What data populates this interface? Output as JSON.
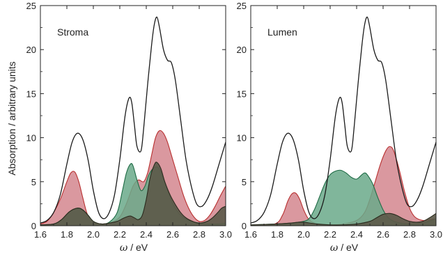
{
  "figure": {
    "ylabel": "Absorption / arbitrary units",
    "xlabel_symbol": "ω",
    "xlabel_unit": " / eV"
  },
  "chart_data": [
    {
      "type": "area",
      "title": "Stroma",
      "xlim": [
        1.6,
        3.0
      ],
      "ylim": [
        0,
        25
      ],
      "x_ticks": [
        "1.6",
        "1.8",
        "2.0",
        "2.2",
        "2.4",
        "2.6",
        "2.8",
        "3.0"
      ],
      "y_ticks": [
        "0",
        "5",
        "10",
        "15",
        "20",
        "25"
      ],
      "grid": false,
      "series": [
        {
          "color": "#1a1a1a",
          "fill": "none",
          "x": [
            1.6,
            1.65,
            1.7,
            1.75,
            1.8,
            1.84,
            1.88,
            1.92,
            1.96,
            2.0,
            2.04,
            2.08,
            2.12,
            2.16,
            2.2,
            2.24,
            2.27,
            2.29,
            2.31,
            2.33,
            2.36,
            2.38,
            2.41,
            2.44,
            2.46,
            2.48,
            2.5,
            2.53,
            2.56,
            2.59,
            2.62,
            2.66,
            2.7,
            2.74,
            2.78,
            2.82,
            2.86,
            2.9,
            2.95,
            3.0
          ],
          "y": [
            0.3,
            0.6,
            1.5,
            3.5,
            7.0,
            9.5,
            10.5,
            9.8,
            7.5,
            4.0,
            1.5,
            0.8,
            1.5,
            3.5,
            7.5,
            12.5,
            14.5,
            14.0,
            11.5,
            9.0,
            8.5,
            11.0,
            16.0,
            20.5,
            22.8,
            23.7,
            22.5,
            20.0,
            18.8,
            18.5,
            16.5,
            12.0,
            7.5,
            4.5,
            2.5,
            2.2,
            3.0,
            4.5,
            7.0,
            9.5
          ]
        },
        {
          "color": "#b83030",
          "fill": "#d4868e",
          "x": [
            1.6,
            1.65,
            1.7,
            1.75,
            1.8,
            1.83,
            1.86,
            1.89,
            1.92,
            1.95,
            1.98,
            2.02,
            2.08,
            2.14,
            2.2,
            2.25,
            2.3,
            2.34,
            2.38,
            2.41,
            2.44,
            2.47,
            2.5,
            2.53,
            2.56,
            2.6,
            2.64,
            2.68,
            2.72,
            2.76,
            2.8,
            2.84,
            2.88,
            2.92,
            2.96,
            3.0
          ],
          "y": [
            0.2,
            0.5,
            1.5,
            3.0,
            5.0,
            6.0,
            6.1,
            5.0,
            3.2,
            1.5,
            0.6,
            0.3,
            0.2,
            0.4,
            1.0,
            2.5,
            4.5,
            5.2,
            5.0,
            6.0,
            8.0,
            10.0,
            10.8,
            10.5,
            9.5,
            7.5,
            5.5,
            3.5,
            2.0,
            1.0,
            0.5,
            0.6,
            1.2,
            2.2,
            3.4,
            4.5
          ]
        },
        {
          "color": "#1f6b45",
          "fill": "#6aa98a",
          "x": [
            1.6,
            1.7,
            1.76,
            1.82,
            1.88,
            1.92,
            1.96,
            2.0,
            2.06,
            2.12,
            2.18,
            2.22,
            2.25,
            2.28,
            2.3,
            2.33,
            2.36,
            2.39,
            2.42,
            2.46,
            2.5,
            2.55,
            2.6,
            2.66,
            2.72,
            2.8,
            2.88,
            2.94,
            3.0
          ],
          "y": [
            0.1,
            0.2,
            0.7,
            1.6,
            2.0,
            1.8,
            1.2,
            0.5,
            0.2,
            0.4,
            1.5,
            4.0,
            6.0,
            7.0,
            6.8,
            5.2,
            4.0,
            4.5,
            5.8,
            6.6,
            6.4,
            4.5,
            2.5,
            1.2,
            0.6,
            0.3,
            0.2,
            0.2,
            0.3
          ]
        },
        {
          "color": "#2b2b1e",
          "fill": "#5c5a4a",
          "x": [
            1.6,
            1.7,
            1.76,
            1.82,
            1.88,
            1.92,
            1.96,
            2.0,
            2.06,
            2.12,
            2.18,
            2.22,
            2.25,
            2.28,
            2.31,
            2.34,
            2.37,
            2.4,
            2.43,
            2.46,
            2.48,
            2.51,
            2.54,
            2.58,
            2.62,
            2.66,
            2.7,
            2.75,
            2.8,
            2.86,
            2.9,
            2.94,
            2.97,
            3.0
          ],
          "y": [
            0.1,
            0.2,
            0.7,
            1.6,
            2.0,
            1.8,
            1.2,
            0.5,
            0.2,
            0.3,
            0.5,
            0.8,
            1.0,
            1.1,
            0.9,
            0.7,
            1.2,
            3.0,
            5.5,
            6.9,
            7.2,
            6.5,
            5.0,
            3.5,
            2.4,
            1.5,
            0.9,
            0.5,
            0.3,
            0.5,
            0.9,
            1.5,
            2.0,
            2.2
          ]
        }
      ]
    },
    {
      "type": "area",
      "title": "Lumen",
      "xlim": [
        1.6,
        3.0
      ],
      "ylim": [
        0,
        25
      ],
      "x_ticks": [
        "1.6",
        "1.8",
        "2.0",
        "2.2",
        "2.4",
        "2.6",
        "2.8",
        "3.0"
      ],
      "y_ticks": [
        "0",
        "5",
        "10",
        "15",
        "20",
        "25"
      ],
      "grid": false,
      "series": [
        {
          "color": "#1a1a1a",
          "fill": "none",
          "x": [
            1.6,
            1.65,
            1.7,
            1.75,
            1.8,
            1.84,
            1.88,
            1.92,
            1.96,
            2.0,
            2.04,
            2.08,
            2.12,
            2.16,
            2.2,
            2.24,
            2.27,
            2.29,
            2.31,
            2.33,
            2.36,
            2.38,
            2.41,
            2.44,
            2.46,
            2.48,
            2.5,
            2.53,
            2.56,
            2.59,
            2.62,
            2.66,
            2.7,
            2.74,
            2.78,
            2.82,
            2.86,
            2.9,
            2.95,
            3.0
          ],
          "y": [
            0.3,
            0.6,
            1.5,
            3.5,
            7.0,
            9.5,
            10.5,
            9.8,
            7.5,
            4.0,
            1.5,
            0.8,
            1.5,
            3.5,
            7.5,
            12.5,
            14.5,
            14.0,
            11.5,
            9.0,
            8.5,
            11.0,
            16.0,
            20.5,
            22.8,
            23.7,
            22.5,
            20.0,
            18.8,
            18.5,
            16.5,
            12.0,
            7.5,
            4.5,
            2.5,
            2.2,
            3.0,
            4.5,
            7.0,
            9.5
          ]
        },
        {
          "color": "#b83030",
          "fill": "#d4868e",
          "x": [
            1.6,
            1.78,
            1.84,
            1.88,
            1.91,
            1.94,
            1.97,
            2.0,
            2.04,
            2.1,
            2.2,
            2.3,
            2.4,
            2.46,
            2.5,
            2.54,
            2.58,
            2.62,
            2.65,
            2.68,
            2.72,
            2.76,
            2.8,
            2.84,
            2.9,
            2.95,
            3.0
          ],
          "y": [
            0.1,
            0.2,
            1.2,
            2.8,
            3.6,
            3.7,
            3.0,
            1.8,
            0.7,
            0.2,
            0.1,
            0.2,
            0.6,
            1.5,
            3.0,
            5.0,
            7.0,
            8.5,
            9.0,
            8.5,
            6.5,
            4.0,
            2.0,
            1.0,
            0.6,
            0.7,
            0.8
          ]
        },
        {
          "color": "#1f6b45",
          "fill": "#6aa98a",
          "x": [
            1.6,
            1.8,
            1.9,
            1.96,
            2.0,
            2.04,
            2.08,
            2.12,
            2.16,
            2.2,
            2.24,
            2.28,
            2.32,
            2.36,
            2.4,
            2.44,
            2.46,
            2.48,
            2.52,
            2.56,
            2.6,
            2.64,
            2.7,
            2.8,
            2.9,
            3.0
          ],
          "y": [
            0.1,
            0.2,
            0.3,
            0.4,
            0.5,
            0.8,
            1.8,
            3.3,
            4.8,
            5.8,
            6.2,
            6.3,
            6.0,
            5.5,
            5.3,
            5.8,
            6.0,
            5.8,
            4.8,
            3.2,
            1.8,
            0.9,
            0.4,
            0.2,
            0.3,
            0.8
          ]
        },
        {
          "color": "#2b2b1e",
          "fill": "#5c5a4a",
          "x": [
            1.6,
            1.8,
            1.9,
            1.96,
            2.0,
            2.1,
            2.2,
            2.3,
            2.4,
            2.5,
            2.55,
            2.6,
            2.65,
            2.7,
            2.75,
            2.8,
            2.85,
            2.9,
            2.95,
            3.0
          ],
          "y": [
            0.1,
            0.2,
            0.3,
            0.4,
            0.4,
            0.2,
            0.1,
            0.1,
            0.2,
            0.5,
            0.9,
            1.3,
            1.4,
            1.2,
            0.8,
            0.5,
            0.4,
            0.5,
            0.9,
            1.4
          ]
        }
      ]
    }
  ]
}
